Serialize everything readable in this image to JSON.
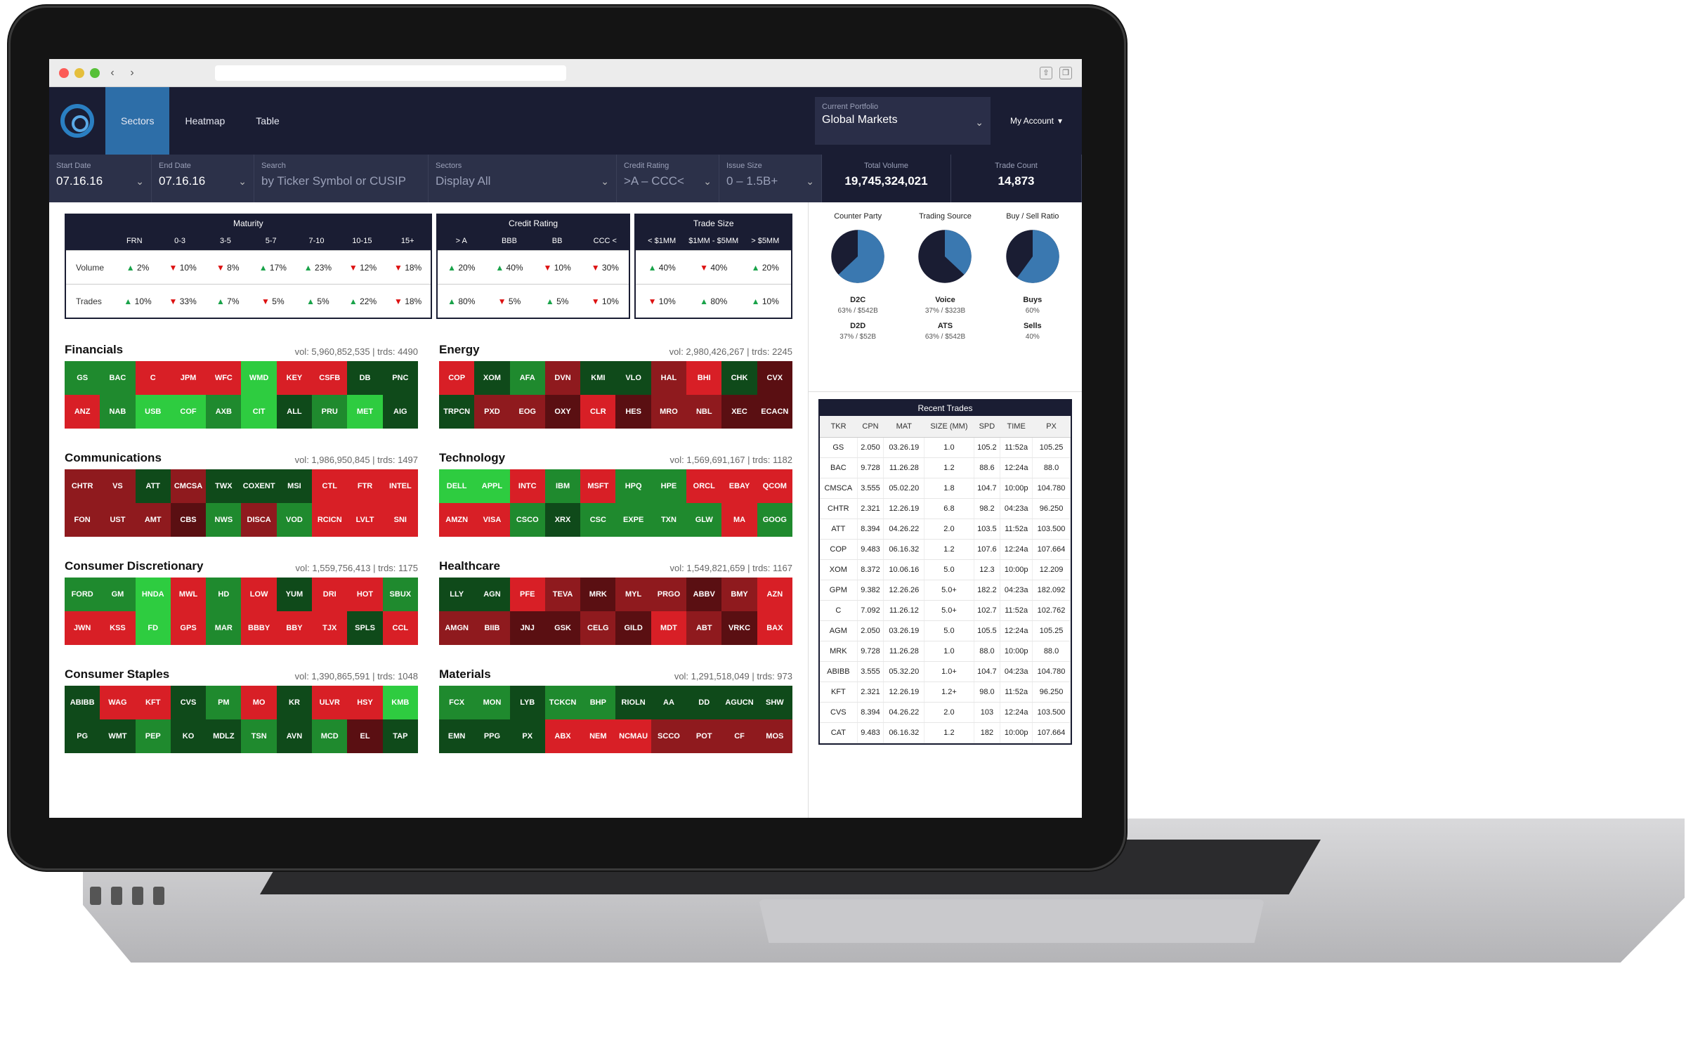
{
  "chrome": {
    "dots": [
      "#fc5b57",
      "#e5bf3c",
      "#57c038"
    ],
    "back": "‹",
    "forward": "›"
  },
  "nav": {
    "tabs": [
      {
        "label": "Sectors",
        "active": true
      },
      {
        "label": "Heatmap",
        "active": false
      },
      {
        "label": "Table",
        "active": false
      }
    ],
    "portfolio_label": "Current Portfolio",
    "portfolio_value": "Global Markets",
    "account": "My Account"
  },
  "filters": {
    "start_date": {
      "label": "Start Date",
      "value": "07.16.16"
    },
    "end_date": {
      "label": "End Date",
      "value": "07.16.16"
    },
    "search": {
      "label": "Search",
      "placeholder": "by Ticker Symbol or CUSIP"
    },
    "sectors": {
      "label": "Sectors",
      "value": "Display All"
    },
    "credit_rating": {
      "label": "Credit Rating",
      "value": ">A – CCC<"
    },
    "issue_size": {
      "label": "Issue Size",
      "value": "0 – 1.5B+"
    },
    "total_volume": {
      "label": "Total Volume",
      "value": "19,745,324,021"
    },
    "trade_count": {
      "label": "Trade Count",
      "value": "14,873"
    }
  },
  "summary": {
    "row_labels": [
      "Volume",
      "Trades"
    ],
    "groups": [
      {
        "title": "Maturity",
        "columns": [
          "FRN",
          "0-3",
          "3-5",
          "5-7",
          "7-10",
          "10-15",
          "15+"
        ],
        "volume": [
          [
            "up",
            "2%"
          ],
          [
            "dn",
            "10%"
          ],
          [
            "dn",
            "8%"
          ],
          [
            "up",
            "17%"
          ],
          [
            "up",
            "23%"
          ],
          [
            "dn",
            "12%"
          ],
          [
            "dn",
            "18%"
          ]
        ],
        "trades": [
          [
            "up",
            "10%"
          ],
          [
            "dn",
            "33%"
          ],
          [
            "up",
            "7%"
          ],
          [
            "dn",
            "5%"
          ],
          [
            "up",
            "5%"
          ],
          [
            "up",
            "22%"
          ],
          [
            "dn",
            "18%"
          ]
        ]
      },
      {
        "title": "Credit Rating",
        "columns": [
          "> A",
          "BBB",
          "BB",
          "CCC <"
        ],
        "volume": [
          [
            "up",
            "20%"
          ],
          [
            "up",
            "40%"
          ],
          [
            "dn",
            "10%"
          ],
          [
            "dn",
            "30%"
          ]
        ],
        "trades": [
          [
            "up",
            "80%"
          ],
          [
            "dn",
            "5%"
          ],
          [
            "up",
            "5%"
          ],
          [
            "dn",
            "10%"
          ]
        ]
      },
      {
        "title": "Trade Size",
        "columns": [
          "< $1MM",
          "$1MM - $5MM",
          "> $5MM"
        ],
        "volume": [
          [
            "up",
            "40%"
          ],
          [
            "dn",
            "40%"
          ],
          [
            "up",
            "20%"
          ]
        ],
        "trades": [
          [
            "dn",
            "10%"
          ],
          [
            "up",
            "80%"
          ],
          [
            "up",
            "10%"
          ]
        ]
      }
    ]
  },
  "colors": {
    "dg": "#0f4a1a",
    "mg": "#1f8a2e",
    "bg": "#2ecc40",
    "dr": "#5a0f12",
    "mr": "#8f1a1e",
    "br": "#d81f26"
  },
  "sectors": [
    {
      "name": "Financials",
      "vol": "vol: 5,960,852,535",
      "trds": "trds: 4490",
      "cells": [
        [
          "GS",
          "mg"
        ],
        [
          "BAC",
          "mg"
        ],
        [
          "C",
          "br"
        ],
        [
          "JPM",
          "br"
        ],
        [
          "WFC",
          "br"
        ],
        [
          "WMD",
          "bg"
        ],
        [
          "KEY",
          "br"
        ],
        [
          "CSFB",
          "br"
        ],
        [
          "DB",
          "dg"
        ],
        [
          "PNC",
          "dg"
        ],
        [
          "ANZ",
          "br"
        ],
        [
          "NAB",
          "mg"
        ],
        [
          "USB",
          "bg"
        ],
        [
          "COF",
          "bg"
        ],
        [
          "AXB",
          "mg"
        ],
        [
          "CIT",
          "bg"
        ],
        [
          "ALL",
          "dg"
        ],
        [
          "PRU",
          "mg"
        ],
        [
          "MET",
          "bg"
        ],
        [
          "AIG",
          "dg"
        ]
      ]
    },
    {
      "name": "Energy",
      "vol": "vol: 2,980,426,267",
      "trds": "trds: 2245",
      "cells": [
        [
          "COP",
          "br"
        ],
        [
          "XOM",
          "dg"
        ],
        [
          "AFA",
          "mg"
        ],
        [
          "DVN",
          "mr"
        ],
        [
          "KMI",
          "dg"
        ],
        [
          "VLO",
          "dg"
        ],
        [
          "HAL",
          "mr"
        ],
        [
          "BHI",
          "br"
        ],
        [
          "CHK",
          "dg"
        ],
        [
          "CVX",
          "dr"
        ],
        [
          "TRPCN",
          "dg"
        ],
        [
          "PXD",
          "mr"
        ],
        [
          "EOG",
          "mr"
        ],
        [
          "OXY",
          "dr"
        ],
        [
          "CLR",
          "br"
        ],
        [
          "HES",
          "dr"
        ],
        [
          "MRO",
          "mr"
        ],
        [
          "NBL",
          "mr"
        ],
        [
          "XEC",
          "dr"
        ],
        [
          "ECACN",
          "dr"
        ]
      ]
    },
    {
      "name": "Communications",
      "vol": "vol: 1,986,950,845",
      "trds": "trds: 1497",
      "cells": [
        [
          "CHTR",
          "mr"
        ],
        [
          "VS",
          "mr"
        ],
        [
          "ATT",
          "dg"
        ],
        [
          "CMCSA",
          "mr"
        ],
        [
          "TWX",
          "dg"
        ],
        [
          "COXENT",
          "dg"
        ],
        [
          "MSI",
          "dg"
        ],
        [
          "CTL",
          "br"
        ],
        [
          "FTR",
          "br"
        ],
        [
          "INTEL",
          "br"
        ],
        [
          "FON",
          "mr"
        ],
        [
          "UST",
          "mr"
        ],
        [
          "AMT",
          "mr"
        ],
        [
          "CBS",
          "dr"
        ],
        [
          "NWS",
          "mg"
        ],
        [
          "DISCA",
          "mr"
        ],
        [
          "VOD",
          "mg"
        ],
        [
          "RCICN",
          "br"
        ],
        [
          "LVLT",
          "br"
        ],
        [
          "SNI",
          "br"
        ]
      ]
    },
    {
      "name": "Technology",
      "vol": "vol: 1,569,691,167",
      "trds": "trds: 1182",
      "cells": [
        [
          "DELL",
          "bg"
        ],
        [
          "APPL",
          "bg"
        ],
        [
          "INTC",
          "br"
        ],
        [
          "IBM",
          "mg"
        ],
        [
          "MSFT",
          "br"
        ],
        [
          "HPQ",
          "mg"
        ],
        [
          "HPE",
          "mg"
        ],
        [
          "ORCL",
          "br"
        ],
        [
          "EBAY",
          "br"
        ],
        [
          "QCOM",
          "br"
        ],
        [
          "AMZN",
          "br"
        ],
        [
          "VISA",
          "br"
        ],
        [
          "CSCO",
          "mg"
        ],
        [
          "XRX",
          "dg"
        ],
        [
          "CSC",
          "mg"
        ],
        [
          "EXPE",
          "mg"
        ],
        [
          "TXN",
          "mg"
        ],
        [
          "GLW",
          "mg"
        ],
        [
          "MA",
          "br"
        ],
        [
          "GOOG",
          "mg"
        ]
      ]
    },
    {
      "name": "Consumer Discretionary",
      "vol": "vol: 1,559,756,413",
      "trds": "trds: 1175",
      "cells": [
        [
          "FORD",
          "mg"
        ],
        [
          "GM",
          "mg"
        ],
        [
          "HNDA",
          "bg"
        ],
        [
          "MWL",
          "br"
        ],
        [
          "HD",
          "mg"
        ],
        [
          "LOW",
          "br"
        ],
        [
          "YUM",
          "dg"
        ],
        [
          "DRI",
          "br"
        ],
        [
          "HOT",
          "br"
        ],
        [
          "SBUX",
          "mg"
        ],
        [
          "JWN",
          "br"
        ],
        [
          "KSS",
          "br"
        ],
        [
          "FD",
          "bg"
        ],
        [
          "GPS",
          "br"
        ],
        [
          "MAR",
          "mg"
        ],
        [
          "BBBY",
          "br"
        ],
        [
          "BBY",
          "br"
        ],
        [
          "TJX",
          "br"
        ],
        [
          "SPLS",
          "dg"
        ],
        [
          "CCL",
          "br"
        ]
      ]
    },
    {
      "name": "Healthcare",
      "vol": "vol: 1,549,821,659",
      "trds": "trds: 1167",
      "cells": [
        [
          "LLY",
          "dg"
        ],
        [
          "AGN",
          "dg"
        ],
        [
          "PFE",
          "br"
        ],
        [
          "TEVA",
          "mr"
        ],
        [
          "MRK",
          "dr"
        ],
        [
          "MYL",
          "mr"
        ],
        [
          "PRGO",
          "mr"
        ],
        [
          "ABBV",
          "dr"
        ],
        [
          "BMY",
          "mr"
        ],
        [
          "AZN",
          "br"
        ],
        [
          "AMGN",
          "mr"
        ],
        [
          "BIIB",
          "mr"
        ],
        [
          "JNJ",
          "dr"
        ],
        [
          "GSK",
          "dr"
        ],
        [
          "CELG",
          "mr"
        ],
        [
          "GILD",
          "dr"
        ],
        [
          "MDT",
          "br"
        ],
        [
          "ABT",
          "mr"
        ],
        [
          "VRKC",
          "dr"
        ],
        [
          "BAX",
          "br"
        ]
      ]
    },
    {
      "name": "Consumer Staples",
      "vol": "vol: 1,390,865,591",
      "trds": "trds: 1048",
      "cells": [
        [
          "ABIBB",
          "dg"
        ],
        [
          "WAG",
          "br"
        ],
        [
          "KFT",
          "br"
        ],
        [
          "CVS",
          "dg"
        ],
        [
          "PM",
          "mg"
        ],
        [
          "MO",
          "br"
        ],
        [
          "KR",
          "dg"
        ],
        [
          "ULVR",
          "br"
        ],
        [
          "HSY",
          "br"
        ],
        [
          "KMB",
          "bg"
        ],
        [
          "PG",
          "dg"
        ],
        [
          "WMT",
          "dg"
        ],
        [
          "PEP",
          "mg"
        ],
        [
          "KO",
          "dg"
        ],
        [
          "MDLZ",
          "dg"
        ],
        [
          "TSN",
          "mg"
        ],
        [
          "AVN",
          "dg"
        ],
        [
          "MCD",
          "mg"
        ],
        [
          "EL",
          "dr"
        ],
        [
          "TAP",
          "dg"
        ]
      ]
    },
    {
      "name": "Materials",
      "vol": "vol: 1,291,518,049",
      "trds": "trds: 973",
      "cells": [
        [
          "FCX",
          "mg"
        ],
        [
          "MON",
          "mg"
        ],
        [
          "LYB",
          "dg"
        ],
        [
          "TCKCN",
          "mg"
        ],
        [
          "BHP",
          "mg"
        ],
        [
          "RIOLN",
          "dg"
        ],
        [
          "AA",
          "dg"
        ],
        [
          "DD",
          "dg"
        ],
        [
          "AGUCN",
          "dg"
        ],
        [
          "SHW",
          "dg"
        ],
        [
          "EMN",
          "dg"
        ],
        [
          "PPG",
          "dg"
        ],
        [
          "PX",
          "dg"
        ],
        [
          "ABX",
          "br"
        ],
        [
          "NEM",
          "br"
        ],
        [
          "NCMAU",
          "br"
        ],
        [
          "SCCO",
          "mr"
        ],
        [
          "POT",
          "mr"
        ],
        [
          "CF",
          "mr"
        ],
        [
          "MOS",
          "mr"
        ]
      ]
    }
  ],
  "pies": [
    {
      "title": "Counter Party",
      "fraction": 0.63,
      "label1": "D2C",
      "val1": "63% / $542B",
      "label2": "D2D",
      "val2": "37% / $52B"
    },
    {
      "title": "Trading Source",
      "fraction": 0.37,
      "label1": "Voice",
      "val1": "37% / $323B",
      "label2": "ATS",
      "val2": "63% / $542B"
    },
    {
      "title": "Buy / Sell Ratio",
      "fraction": 0.6,
      "label1": "Buys",
      "val1": "60%",
      "label2": "Sells",
      "val2": "40%"
    }
  ],
  "trades": {
    "title": "Recent Trades",
    "columns": [
      "TKR",
      "CPN",
      "MAT",
      "SIZE (MM)",
      "SPD",
      "TIME",
      "PX"
    ],
    "rows": [
      [
        "GS",
        "2.050",
        "03.26.19",
        "1.0",
        "105.2",
        "11:52a",
        "105.25"
      ],
      [
        "BAC",
        "9.728",
        "11.26.28",
        "1.2",
        "88.6",
        "12:24a",
        "88.0"
      ],
      [
        "CMSCA",
        "3.555",
        "05.02.20",
        "1.8",
        "104.7",
        "10:00p",
        "104.780"
      ],
      [
        "CHTR",
        "2.321",
        "12.26.19",
        "6.8",
        "98.2",
        "04:23a",
        "96.250"
      ],
      [
        "ATT",
        "8.394",
        "04.26.22",
        "2.0",
        "103.5",
        "11:52a",
        "103.500"
      ],
      [
        "COP",
        "9.483",
        "06.16.32",
        "1.2",
        "107.6",
        "12:24a",
        "107.664"
      ],
      [
        "XOM",
        "8.372",
        "10.06.16",
        "5.0",
        "12.3",
        "10:00p",
        "12.209"
      ],
      [
        "GPM",
        "9.382",
        "12.26.26",
        "5.0+",
        "182.2",
        "04:23a",
        "182.092"
      ],
      [
        "C",
        "7.092",
        "11.26.12",
        "5.0+",
        "102.7",
        "11:52a",
        "102.762"
      ],
      [
        "AGM",
        "2.050",
        "03.26.19",
        "5.0",
        "105.5",
        "12:24a",
        "105.25"
      ],
      [
        "MRK",
        "9.728",
        "11.26.28",
        "1.0",
        "88.0",
        "10:00p",
        "88.0"
      ],
      [
        "ABIBB",
        "3.555",
        "05.32.20",
        "1.0+",
        "104.7",
        "04:23a",
        "104.780"
      ],
      [
        "KFT",
        "2.321",
        "12.26.19",
        "1.2+",
        "98.0",
        "11:52a",
        "96.250"
      ],
      [
        "CVS",
        "8.394",
        "04.26.22",
        "2.0",
        "103",
        "12:24a",
        "103.500"
      ],
      [
        "CAT",
        "9.483",
        "06.16.32",
        "1.2",
        "182",
        "10:00p",
        "107.664"
      ]
    ]
  }
}
